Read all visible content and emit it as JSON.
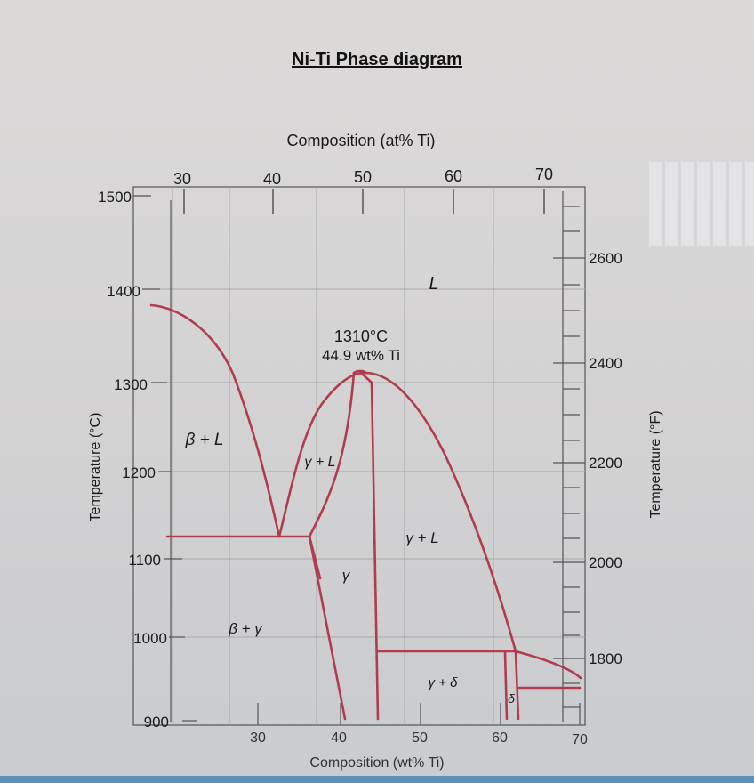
{
  "title": "Ni-Ti Phase diagram",
  "top_axis": {
    "label": "Composition (at% Ti)",
    "ticks": [
      "30",
      "40",
      "50",
      "60",
      "70"
    ]
  },
  "bottom_axis": {
    "label": "Composition (wt% Ti)",
    "ticks": [
      "30",
      "40",
      "50",
      "60",
      "70"
    ]
  },
  "left_axis": {
    "label": "Temperature (°C)",
    "ticks": [
      "900",
      "1000",
      "1100",
      "1200",
      "1300",
      "1400",
      "1500"
    ]
  },
  "right_axis": {
    "label": "Temperature (°F)",
    "ticks": [
      "1800",
      "2000",
      "2200",
      "2400",
      "2600"
    ]
  },
  "annotation": {
    "line1": "1310°C",
    "line2": "44.9 wt% Ti"
  },
  "regions": {
    "liquid": "L",
    "beta_l": "β + L",
    "gamma_l_left": "γ + L",
    "gamma_l_right": "γ + L",
    "gamma": "γ",
    "beta_gamma": "β + γ",
    "gamma_delta": "γ + δ",
    "delta": "δ"
  },
  "colors": {
    "phase_line": "#b13c4e",
    "grid": "#a9a9a9",
    "text": "#1a1a1a",
    "bottom_bar": "#5e8fb5"
  }
}
